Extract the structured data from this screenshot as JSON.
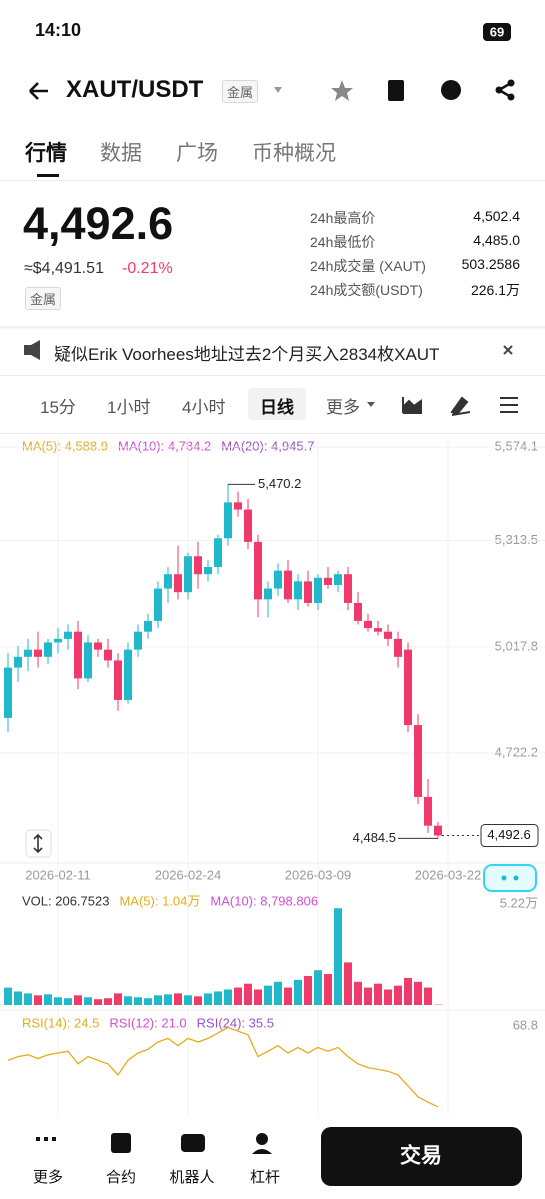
{
  "status_bar": {
    "time": "14:10",
    "battery": "69"
  },
  "header": {
    "symbol": "XAUT/USDT",
    "tag": "金属"
  },
  "tabs": [
    "行情",
    "数据",
    "广场",
    "币种概况"
  ],
  "ticker": {
    "price": "4,492.6",
    "fiat": "≈$4,491.51",
    "change": "-0.21%",
    "tag": "金属",
    "stats": [
      {
        "label": "24h最高价",
        "value": "4,502.4"
      },
      {
        "label": "24h最低价",
        "value": "4,485.0"
      },
      {
        "label": "24h成交量 (XAUT)",
        "value": "503.2586"
      },
      {
        "label": "24h成交额(USDT)",
        "value": "226.1万"
      }
    ]
  },
  "news": "疑似Erik Voorhees地址过去2个月买入2834枚XAUT",
  "intervals": [
    "15分",
    "1小时",
    "4小时",
    "日线",
    "更多"
  ],
  "chart_data": [
    {
      "type": "candlestick",
      "up_color": "#22b8cc",
      "down_color": "#f03a6c",
      "grid": true,
      "legend": [
        {
          "name": "MA(5): 4,588.9",
          "color": "#e2ad1c"
        },
        {
          "name": "MA(10): 4,784.2",
          "color": "#d24fd0"
        },
        {
          "name": "MA(20): 4,945.7",
          "color": "#9a52c4"
        }
      ],
      "xlim": [
        -0.8,
        48.2
      ],
      "ylim": [
        4430,
        5574.1
      ],
      "yticks": [
        {
          "value": 5574.1,
          "label": "5,574.1"
        },
        {
          "value": 5313.5,
          "label": "5,313.5"
        },
        {
          "value": 5017.8,
          "label": "5,017.8"
        },
        {
          "value": 4722.2,
          "label": "4,722.2"
        }
      ],
      "xticks": [
        {
          "value": 5,
          "label": "2026-02-11"
        },
        {
          "value": 18,
          "label": "2026-02-24"
        },
        {
          "value": 31,
          "label": "2026-03-09"
        },
        {
          "value": 44,
          "label": "2026-03-22"
        }
      ],
      "annotations": [
        {
          "value": 5470.2,
          "label": "5,470.2"
        },
        {
          "value": 4484.5,
          "label": "4,484.5"
        },
        {
          "value": 4492.6,
          "label": "4,492.6"
        }
      ],
      "candles": [
        {
          "o": 4820,
          "h": 5000,
          "l": 4780,
          "c": 4960
        },
        {
          "o": 4960,
          "h": 5020,
          "l": 4920,
          "c": 4990
        },
        {
          "o": 4990,
          "h": 5040,
          "l": 4950,
          "c": 5010
        },
        {
          "o": 5010,
          "h": 5060,
          "l": 4960,
          "c": 4990
        },
        {
          "o": 4990,
          "h": 5040,
          "l": 4970,
          "c": 5030
        },
        {
          "o": 5030,
          "h": 5070,
          "l": 5000,
          "c": 5040
        },
        {
          "o": 5040,
          "h": 5080,
          "l": 5010,
          "c": 5060
        },
        {
          "o": 5060,
          "h": 5090,
          "l": 4900,
          "c": 4930
        },
        {
          "o": 4930,
          "h": 5050,
          "l": 4920,
          "c": 5030
        },
        {
          "o": 5030,
          "h": 5040,
          "l": 4990,
          "c": 5010
        },
        {
          "o": 5010,
          "h": 5040,
          "l": 4960,
          "c": 4980
        },
        {
          "o": 4980,
          "h": 5000,
          "l": 4840,
          "c": 4870
        },
        {
          "o": 4870,
          "h": 5030,
          "l": 4860,
          "c": 5010
        },
        {
          "o": 5010,
          "h": 5080,
          "l": 4990,
          "c": 5060
        },
        {
          "o": 5060,
          "h": 5110,
          "l": 5040,
          "c": 5090
        },
        {
          "o": 5090,
          "h": 5200,
          "l": 5070,
          "c": 5180
        },
        {
          "o": 5180,
          "h": 5240,
          "l": 5140,
          "c": 5220
        },
        {
          "o": 5220,
          "h": 5300,
          "l": 5150,
          "c": 5170
        },
        {
          "o": 5170,
          "h": 5280,
          "l": 5150,
          "c": 5270
        },
        {
          "o": 5270,
          "h": 5310,
          "l": 5180,
          "c": 5220
        },
        {
          "o": 5220,
          "h": 5260,
          "l": 5200,
          "c": 5240
        },
        {
          "o": 5240,
          "h": 5330,
          "l": 5220,
          "c": 5320
        },
        {
          "o": 5320,
          "h": 5470.2,
          "l": 5300,
          "c": 5420
        },
        {
          "o": 5420,
          "h": 5450,
          "l": 5380,
          "c": 5400
        },
        {
          "o": 5400,
          "h": 5430,
          "l": 5290,
          "c": 5310
        },
        {
          "o": 5310,
          "h": 5330,
          "l": 5100,
          "c": 5150
        },
        {
          "o": 5150,
          "h": 5200,
          "l": 5100,
          "c": 5180
        },
        {
          "o": 5180,
          "h": 5250,
          "l": 5160,
          "c": 5230
        },
        {
          "o": 5230,
          "h": 5260,
          "l": 5140,
          "c": 5150
        },
        {
          "o": 5150,
          "h": 5220,
          "l": 5120,
          "c": 5200
        },
        {
          "o": 5200,
          "h": 5230,
          "l": 5130,
          "c": 5140
        },
        {
          "o": 5140,
          "h": 5220,
          "l": 5120,
          "c": 5210
        },
        {
          "o": 5210,
          "h": 5240,
          "l": 5180,
          "c": 5190
        },
        {
          "o": 5190,
          "h": 5230,
          "l": 5170,
          "c": 5220
        },
        {
          "o": 5220,
          "h": 5240,
          "l": 5120,
          "c": 5140
        },
        {
          "o": 5140,
          "h": 5170,
          "l": 5080,
          "c": 5090
        },
        {
          "o": 5090,
          "h": 5110,
          "l": 5060,
          "c": 5070
        },
        {
          "o": 5070,
          "h": 5090,
          "l": 5050,
          "c": 5060
        },
        {
          "o": 5060,
          "h": 5080,
          "l": 5020,
          "c": 5040
        },
        {
          "o": 5040,
          "h": 5060,
          "l": 4960,
          "c": 4990
        },
        {
          "o": 5010,
          "h": 5030,
          "l": 4780,
          "c": 4800
        },
        {
          "o": 4800,
          "h": 4830,
          "l": 4580,
          "c": 4600
        },
        {
          "o": 4600,
          "h": 4650,
          "l": 4500,
          "c": 4520
        },
        {
          "o": 4520,
          "h": 4530,
          "l": 4484.5,
          "c": 4492.6
        }
      ]
    },
    {
      "type": "bar",
      "legend": [
        {
          "name": "VOL: 206.7523",
          "color": "#333333"
        },
        {
          "name": "MA(5): 1.04万",
          "color": "#e2ad1c"
        },
        {
          "name": "MA(10): 8,798.806",
          "color": "#d24fd0"
        }
      ],
      "xlim": [
        -0.8,
        48.2
      ],
      "ylim": [
        0,
        52200
      ],
      "yticks": [
        {
          "value": 52200,
          "label": "5.22万"
        }
      ],
      "values": [
        9000,
        7000,
        6000,
        5000,
        5500,
        4000,
        3500,
        5000,
        4000,
        3000,
        3500,
        6000,
        4500,
        4000,
        3500,
        5000,
        5500,
        6000,
        5000,
        4500,
        6000,
        7000,
        8000,
        9000,
        11000,
        8000,
        10000,
        12000,
        9000,
        13000,
        15000,
        18000,
        16000,
        50000,
        22000,
        12000,
        9000,
        11000,
        8000,
        10000,
        14000,
        12000,
        9000,
        206.7523
      ]
    },
    {
      "type": "line",
      "legend": [
        {
          "name": "RSI(14): 24.5",
          "color": "#e2ad1c"
        },
        {
          "name": "RSI(12): 21.0",
          "color": "#d24fd0"
        },
        {
          "name": "RSI(24): 35.5",
          "color": "#9a52c4"
        }
      ],
      "xlim": [
        -0.8,
        48.2
      ],
      "ylim": [
        20,
        68.8
      ],
      "yticks": [
        68.8
      ],
      "series": [
        {
          "color": "#e2ad1c",
          "values": [
            50,
            52,
            53,
            51,
            53,
            54,
            55,
            48,
            52,
            50,
            48,
            42,
            50,
            54,
            56,
            60,
            62,
            58,
            62,
            60,
            62,
            65,
            68,
            66,
            64,
            52,
            55,
            58,
            54,
            57,
            54,
            57,
            55,
            57,
            52,
            48,
            46,
            45,
            44,
            42,
            36,
            30,
            27,
            24.5
          ]
        }
      ]
    }
  ],
  "nav": [
    "更多",
    "合约",
    "机器人",
    "杠杆"
  ],
  "trade": "交易"
}
